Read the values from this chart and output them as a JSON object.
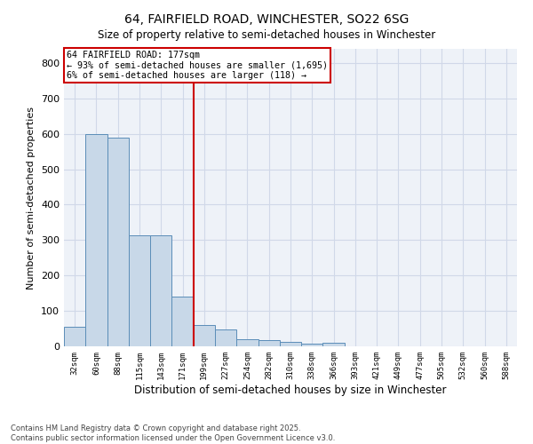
{
  "title": "64, FAIRFIELD ROAD, WINCHESTER, SO22 6SG",
  "subtitle": "Size of property relative to semi-detached houses in Winchester",
  "xlabel": "Distribution of semi-detached houses by size in Winchester",
  "ylabel": "Number of semi-detached properties",
  "bin_labels": [
    "32sqm",
    "60sqm",
    "88sqm",
    "115sqm",
    "143sqm",
    "171sqm",
    "199sqm",
    "227sqm",
    "254sqm",
    "282sqm",
    "310sqm",
    "338sqm",
    "366sqm",
    "393sqm",
    "421sqm",
    "449sqm",
    "477sqm",
    "505sqm",
    "532sqm",
    "560sqm",
    "588sqm"
  ],
  "bar_values": [
    55,
    600,
    590,
    313,
    313,
    140,
    60,
    48,
    20,
    18,
    12,
    8,
    10,
    0,
    0,
    0,
    0,
    0,
    0,
    0,
    0
  ],
  "bar_color": "#c8d8e8",
  "bar_edge_color": "#5b8db8",
  "property_bin_index": 5,
  "vline_color": "#cc0000",
  "annotation_title": "64 FAIRFIELD ROAD: 177sqm",
  "annotation_line1": "← 93% of semi-detached houses are smaller (1,695)",
  "annotation_line2": "6% of semi-detached houses are larger (118) →",
  "annotation_box_color": "#ffffff",
  "annotation_box_edge_color": "#cc0000",
  "ylim": [
    0,
    840
  ],
  "yticks": [
    0,
    100,
    200,
    300,
    400,
    500,
    600,
    700,
    800
  ],
  "grid_color": "#d0d8e8",
  "bg_color": "#eef2f8",
  "footer": "Contains HM Land Registry data © Crown copyright and database right 2025.\nContains public sector information licensed under the Open Government Licence v3.0.",
  "title_fontsize": 10,
  "bar_width": 1.0
}
